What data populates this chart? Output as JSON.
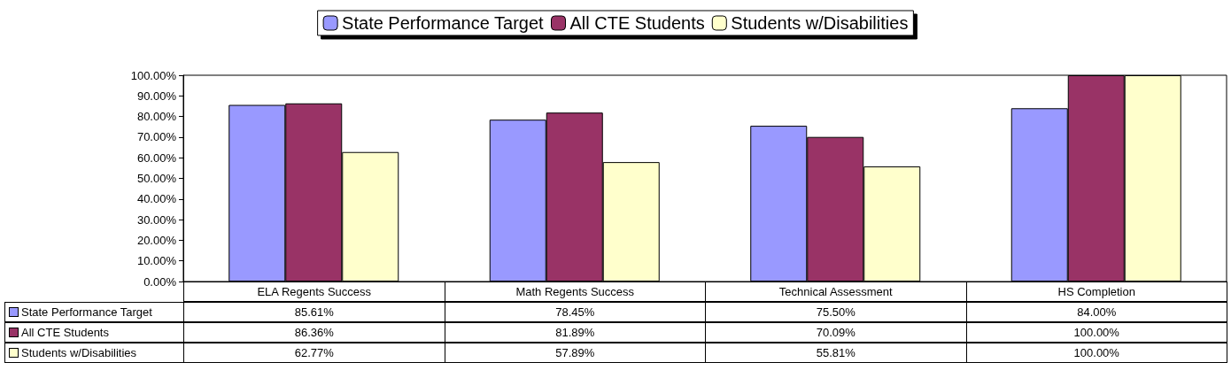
{
  "chart_data": {
    "type": "bar",
    "categories": [
      "ELA Regents Success",
      "Math Regents Success",
      "Technical Assessment",
      "HS Completion"
    ],
    "series": [
      {
        "name": "State Performance Target",
        "color": "#9999ff",
        "values": [
          85.61,
          78.45,
          75.5,
          84
        ],
        "value_labels": [
          "85.61%",
          "78.45%",
          "75.50%",
          "84.00%"
        ]
      },
      {
        "name": "All CTE Students",
        "color": "#993366",
        "values": [
          86.36,
          81.89,
          70.09,
          100
        ],
        "value_labels": [
          "86.36%",
          "81.89%",
          "70.09%",
          "100.00%"
        ]
      },
      {
        "name": "Students w/Disabilities",
        "color": "#ffffcc",
        "values": [
          62.77,
          57.89,
          55.81,
          100
        ],
        "value_labels": [
          "62.77%",
          "57.89%",
          "55.81%",
          "100.00%"
        ]
      }
    ],
    "ylim": [
      0,
      100
    ],
    "yticks": [
      {
        "value": 0,
        "label": "0.00%"
      },
      {
        "value": 10,
        "label": "10.00%"
      },
      {
        "value": 20,
        "label": "20.00%"
      },
      {
        "value": 30,
        "label": "30.00%"
      },
      {
        "value": 40,
        "label": "40.00%"
      },
      {
        "value": 50,
        "label": "50.00%"
      },
      {
        "value": 60,
        "label": "60.00%"
      },
      {
        "value": 70,
        "label": "70.00%"
      },
      {
        "value": 80,
        "label": "80.00%"
      },
      {
        "value": 90,
        "label": "90.00%"
      },
      {
        "value": 100,
        "label": "100.00%"
      }
    ],
    "grid": false,
    "legend": "top"
  }
}
